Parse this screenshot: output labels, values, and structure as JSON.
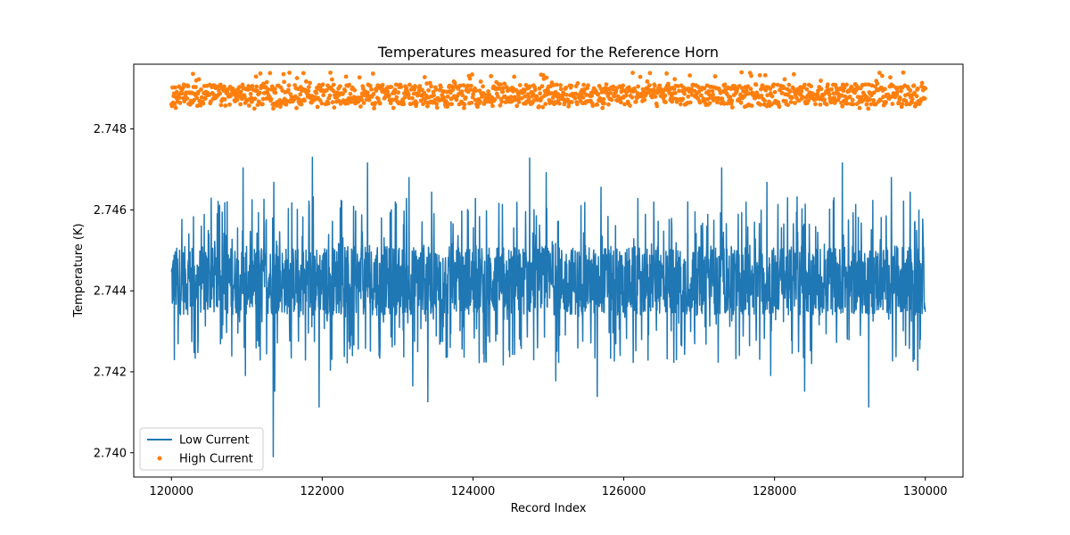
{
  "chart_data": {
    "type": "line",
    "title": "Temperatures measured for the Reference Horn",
    "xlabel": "Record Index",
    "ylabel": "Temperature (K)",
    "xlim": [
      119500,
      130500
    ],
    "ylim": [
      2.7394,
      2.7496
    ],
    "xticks": [
      120000,
      122000,
      124000,
      126000,
      128000,
      130000
    ],
    "xtick_labels": [
      "120000",
      "122000",
      "124000",
      "126000",
      "128000",
      "130000"
    ],
    "yticks": [
      2.74,
      2.742,
      2.744,
      2.746,
      2.748
    ],
    "ytick_labels": [
      "2.740",
      "2.742",
      "2.744",
      "2.746",
      "2.748"
    ],
    "grid": false,
    "legend_position": "lower-left",
    "series": [
      {
        "name": "Low Current",
        "style": "line",
        "color": "#1f77b4",
        "x_range": [
          120000,
          130000
        ],
        "band": [
          2.7434,
          2.7451
        ],
        "mean": 2.7442,
        "max": 2.7473,
        "min": 2.7399
      },
      {
        "name": "High Current",
        "style": "markers",
        "color": "#ff7f0e",
        "x_range": [
          120000,
          130000
        ],
        "band": [
          2.7486,
          2.7491
        ],
        "mean": 2.7488,
        "max": 2.7494,
        "min": 2.7485
      }
    ]
  }
}
